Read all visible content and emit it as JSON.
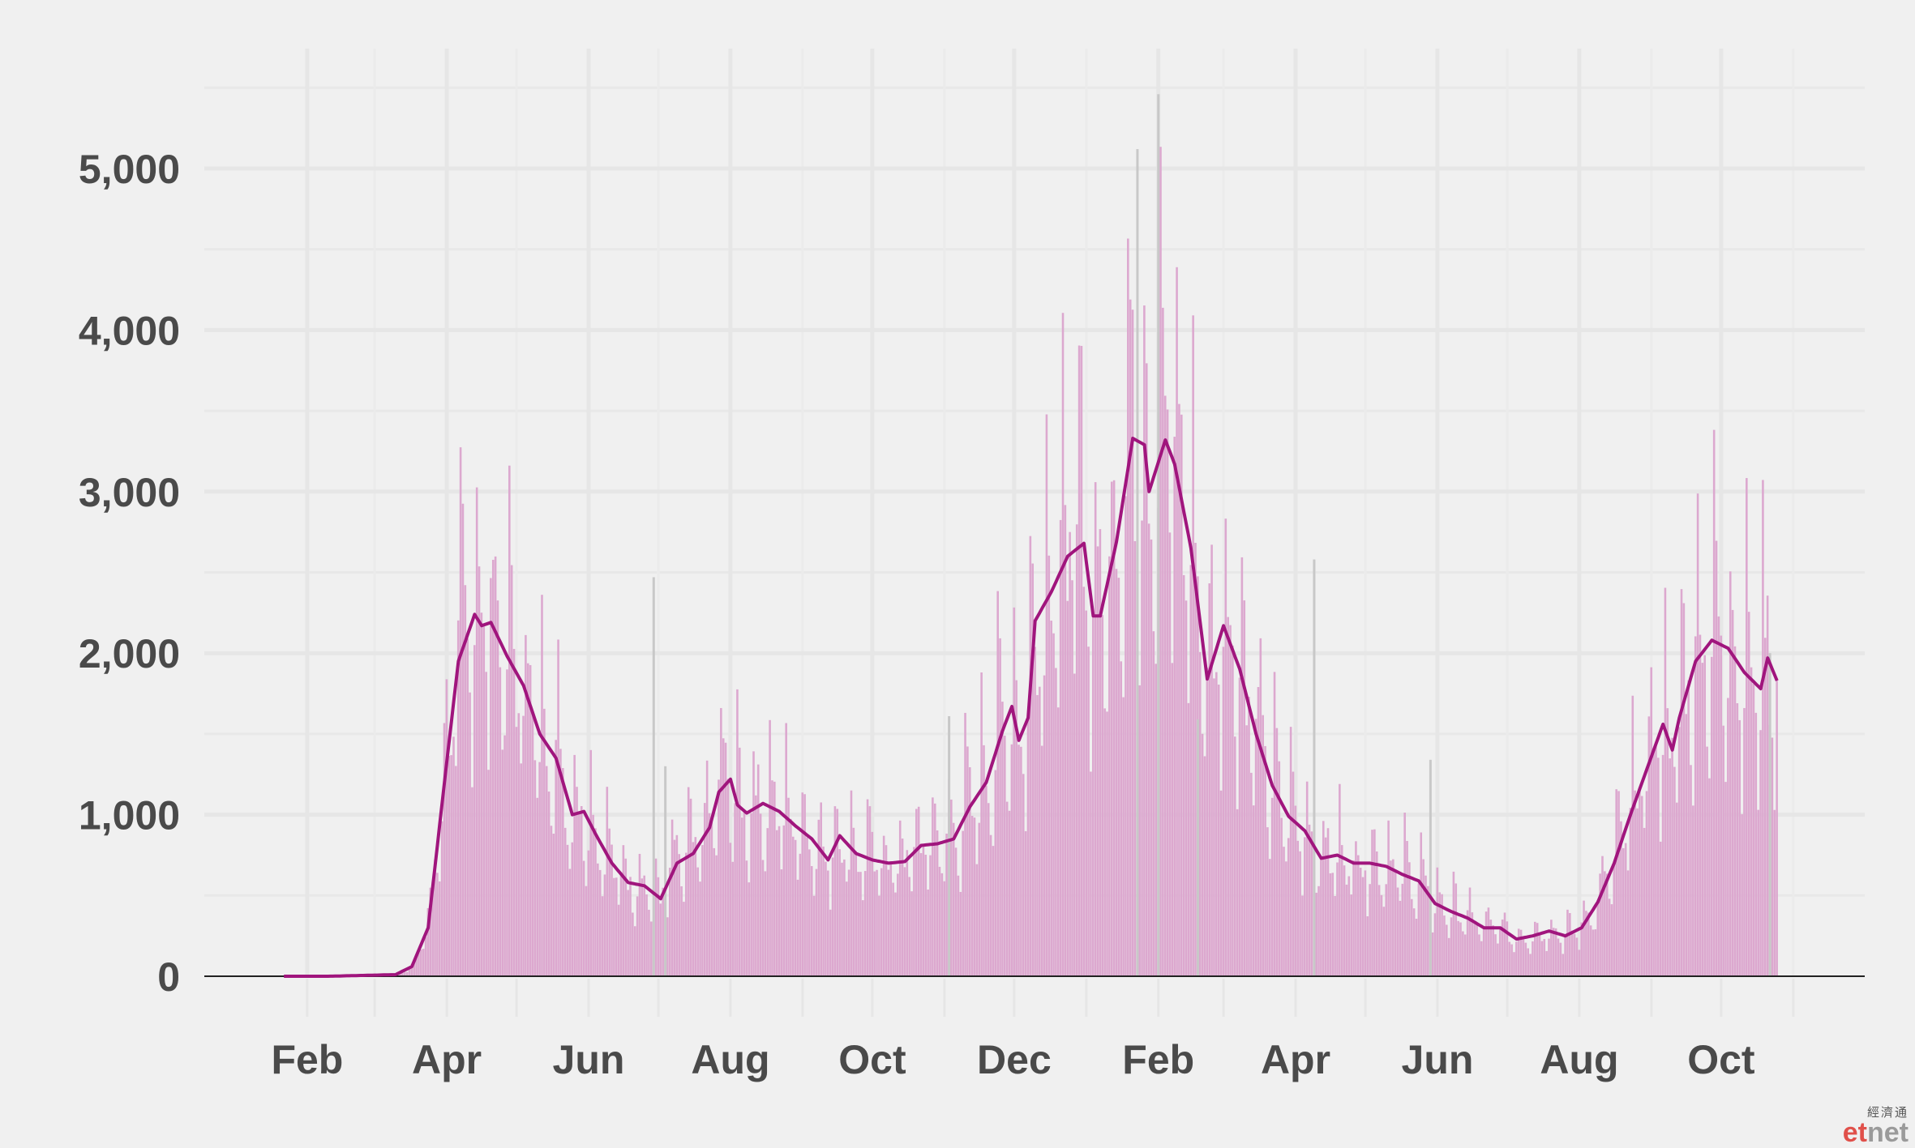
{
  "chart_data": {
    "type": "bar",
    "title": "",
    "xlabel": "",
    "ylabel": "",
    "ylim": [
      0,
      5700
    ],
    "yticks": [
      0,
      1000,
      2000,
      3000,
      4000,
      5000
    ],
    "ytick_labels": [
      "0",
      "1,000",
      "2,000",
      "3,000",
      "4,000",
      "5,000"
    ],
    "xtick_labels": [
      "Feb",
      "Apr",
      "Jun",
      "Aug",
      "Oct",
      "Dec",
      "Feb",
      "Apr",
      "Jun",
      "Aug",
      "Oct"
    ],
    "x_range": [
      "2020-01-01",
      "2021-11-15"
    ],
    "grid": true,
    "series": [
      {
        "kind": "daily-bars",
        "color": "#dca8cf",
        "anomaly_color": "#c8c8c8",
        "anomalies": [
          {
            "date": "2020-06-29",
            "value": 2470
          },
          {
            "date": "2020-07-04",
            "value": 1300
          },
          {
            "date": "2020-11-03",
            "value": 1610
          },
          {
            "date": "2021-01-23",
            "value": 5120
          },
          {
            "date": "2021-02-01",
            "value": 5460
          },
          {
            "date": "2021-02-18",
            "value": 1590
          },
          {
            "date": "2021-04-09",
            "value": 2580
          },
          {
            "date": "2021-05-29",
            "value": 1340
          },
          {
            "date": "2021-10-22",
            "value": 2000
          }
        ]
      },
      {
        "kind": "rolling-average",
        "color": "#a0157d",
        "points": [
          [
            "2020-01-01",
            0
          ],
          [
            "2020-02-10",
            0
          ],
          [
            "2020-03-10",
            10
          ],
          [
            "2020-03-17",
            60
          ],
          [
            "2020-03-24",
            300
          ],
          [
            "2020-03-31",
            1200
          ],
          [
            "2020-04-06",
            1950
          ],
          [
            "2020-04-13",
            2240
          ],
          [
            "2020-04-16",
            2170
          ],
          [
            "2020-04-20",
            2190
          ],
          [
            "2020-04-27",
            1980
          ],
          [
            "2020-05-04",
            1800
          ],
          [
            "2020-05-11",
            1500
          ],
          [
            "2020-05-18",
            1350
          ],
          [
            "2020-05-25",
            1000
          ],
          [
            "2020-05-30",
            1020
          ],
          [
            "2020-06-04",
            880
          ],
          [
            "2020-06-11",
            700
          ],
          [
            "2020-06-18",
            580
          ],
          [
            "2020-06-25",
            560
          ],
          [
            "2020-07-02",
            480
          ],
          [
            "2020-07-09",
            700
          ],
          [
            "2020-07-16",
            760
          ],
          [
            "2020-07-23",
            920
          ],
          [
            "2020-07-27",
            1140
          ],
          [
            "2020-08-01",
            1220
          ],
          [
            "2020-08-04",
            1060
          ],
          [
            "2020-08-08",
            1010
          ],
          [
            "2020-08-15",
            1070
          ],
          [
            "2020-08-22",
            1020
          ],
          [
            "2020-08-29",
            930
          ],
          [
            "2020-09-05",
            850
          ],
          [
            "2020-09-12",
            720
          ],
          [
            "2020-09-17",
            870
          ],
          [
            "2020-09-24",
            760
          ],
          [
            "2020-10-01",
            720
          ],
          [
            "2020-10-08",
            700
          ],
          [
            "2020-10-15",
            710
          ],
          [
            "2020-10-22",
            810
          ],
          [
            "2020-10-29",
            820
          ],
          [
            "2020-11-05",
            850
          ],
          [
            "2020-11-12",
            1050
          ],
          [
            "2020-11-19",
            1200
          ],
          [
            "2020-11-26",
            1520
          ],
          [
            "2020-11-30",
            1670
          ],
          [
            "2020-12-03",
            1460
          ],
          [
            "2020-12-07",
            1600
          ],
          [
            "2020-12-10",
            2200
          ],
          [
            "2020-12-17",
            2380
          ],
          [
            "2020-12-24",
            2600
          ],
          [
            "2020-12-31",
            2680
          ],
          [
            "2021-01-04",
            2230
          ],
          [
            "2021-01-07",
            2230
          ],
          [
            "2021-01-14",
            2690
          ],
          [
            "2021-01-21",
            3330
          ],
          [
            "2021-01-26",
            3290
          ],
          [
            "2021-01-28",
            3000
          ],
          [
            "2021-02-04",
            3320
          ],
          [
            "2021-02-08",
            3170
          ],
          [
            "2021-02-15",
            2650
          ],
          [
            "2021-02-22",
            1840
          ],
          [
            "2021-03-01",
            2170
          ],
          [
            "2021-03-08",
            1900
          ],
          [
            "2021-03-15",
            1500
          ],
          [
            "2021-03-22",
            1180
          ],
          [
            "2021-03-29",
            990
          ],
          [
            "2021-04-05",
            900
          ],
          [
            "2021-04-12",
            730
          ],
          [
            "2021-04-19",
            750
          ],
          [
            "2021-04-26",
            700
          ],
          [
            "2021-05-03",
            700
          ],
          [
            "2021-05-10",
            680
          ],
          [
            "2021-05-17",
            630
          ],
          [
            "2021-05-24",
            590
          ],
          [
            "2021-05-31",
            450
          ],
          [
            "2021-06-07",
            400
          ],
          [
            "2021-06-14",
            360
          ],
          [
            "2021-06-21",
            300
          ],
          [
            "2021-06-28",
            300
          ],
          [
            "2021-07-05",
            230
          ],
          [
            "2021-07-12",
            250
          ],
          [
            "2021-07-19",
            280
          ],
          [
            "2021-07-26",
            250
          ],
          [
            "2021-08-02",
            300
          ],
          [
            "2021-08-09",
            460
          ],
          [
            "2021-08-16",
            700
          ],
          [
            "2021-08-23",
            1000
          ],
          [
            "2021-08-30",
            1280
          ],
          [
            "2021-09-06",
            1560
          ],
          [
            "2021-09-10",
            1400
          ],
          [
            "2021-09-13",
            1600
          ],
          [
            "2021-09-20",
            1950
          ],
          [
            "2021-09-27",
            2080
          ],
          [
            "2021-10-04",
            2030
          ],
          [
            "2021-10-11",
            1880
          ],
          [
            "2021-10-18",
            1780
          ],
          [
            "2021-10-21",
            1970
          ],
          [
            "2021-10-25",
            1830
          ]
        ]
      }
    ]
  },
  "watermark": {
    "chinese": "經濟通",
    "brand_et": "et",
    "brand_net": "net"
  }
}
